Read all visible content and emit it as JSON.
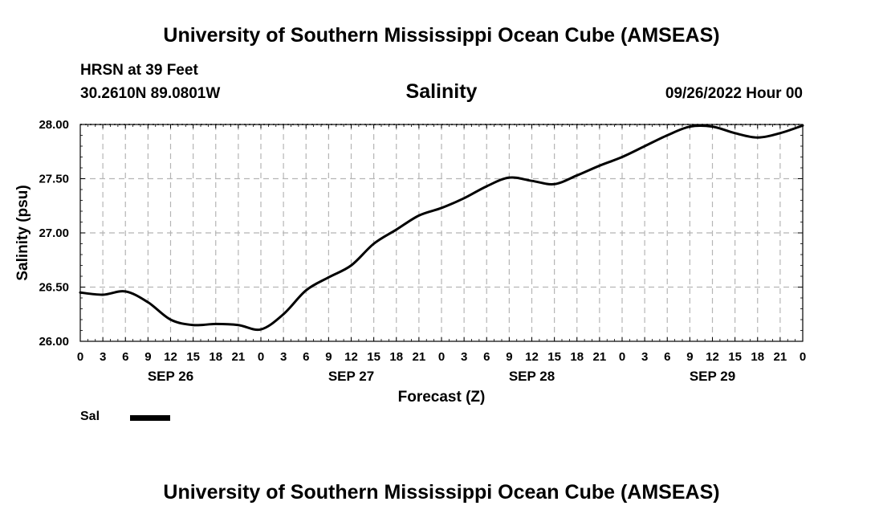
{
  "header": {
    "title": "University of Southern Mississippi Ocean Cube (AMSEAS)",
    "station": "HRSN at 39 Feet",
    "coords": "30.2610N  89.0801W",
    "datetime": "09/26/2022 Hour 00"
  },
  "footer": {
    "title": "University of Southern Mississippi Ocean Cube (AMSEAS)"
  },
  "chart_data": {
    "type": "line",
    "title": "Salinity",
    "xlabel": "Forecast (Z)",
    "ylabel": "Salinity (psu)",
    "ylim": [
      26.0,
      28.0
    ],
    "yticks": [
      "26.00",
      "26.50",
      "27.00",
      "27.50",
      "28.00"
    ],
    "ytick_values": [
      26.0,
      26.5,
      27.0,
      27.5,
      28.0
    ],
    "xlim": [
      0,
      96
    ],
    "x_tick_labels": [
      "0",
      "3",
      "6",
      "9",
      "12",
      "15",
      "18",
      "21",
      "0",
      "3",
      "6",
      "9",
      "12",
      "15",
      "18",
      "21",
      "0",
      "3",
      "6",
      "9",
      "12",
      "15",
      "18",
      "21",
      "0",
      "3",
      "6",
      "9",
      "12",
      "15",
      "18",
      "21",
      "0"
    ],
    "x_tick_hours": [
      0,
      3,
      6,
      9,
      12,
      15,
      18,
      21,
      24,
      27,
      30,
      33,
      36,
      39,
      42,
      45,
      48,
      51,
      54,
      57,
      60,
      63,
      66,
      69,
      72,
      75,
      78,
      81,
      84,
      87,
      90,
      93,
      96
    ],
    "day_labels": [
      {
        "hour": 12,
        "label": "SEP 26"
      },
      {
        "hour": 36,
        "label": "SEP 27"
      },
      {
        "hour": 60,
        "label": "SEP 28"
      },
      {
        "hour": 84,
        "label": "SEP 29"
      }
    ],
    "grid": true,
    "legend": "bottom-left",
    "series": [
      {
        "name": "Sal",
        "color": "#000000",
        "x": [
          0,
          3,
          6,
          9,
          12,
          15,
          18,
          21,
          24,
          27,
          30,
          33,
          36,
          39,
          42,
          45,
          48,
          51,
          54,
          57,
          60,
          63,
          66,
          69,
          72,
          75,
          78,
          81,
          84,
          87,
          90,
          93,
          96
        ],
        "values": [
          26.45,
          26.43,
          26.46,
          26.36,
          26.2,
          26.15,
          26.16,
          26.15,
          26.11,
          26.25,
          26.47,
          26.59,
          26.7,
          26.9,
          27.03,
          27.16,
          27.23,
          27.32,
          27.43,
          27.51,
          27.48,
          27.45,
          27.53,
          27.62,
          27.7,
          27.8,
          27.9,
          27.98,
          27.98,
          27.92,
          27.88,
          27.92,
          27.99
        ]
      }
    ]
  }
}
